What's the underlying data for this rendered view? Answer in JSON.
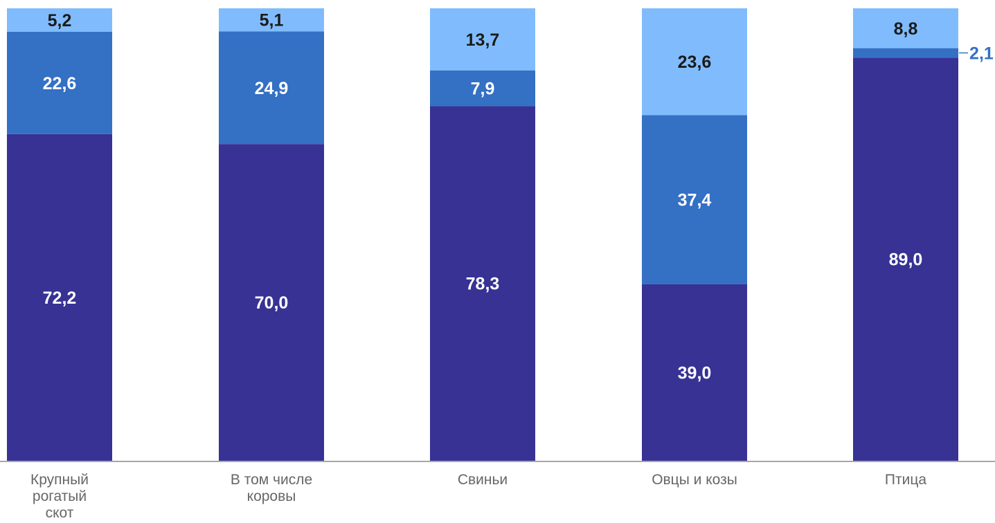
{
  "chart_data": {
    "type": "bar",
    "stacked": true,
    "percent_stacked": true,
    "categories": [
      [
        "Крупный",
        "рогатый",
        "скот"
      ],
      [
        "В том числе",
        "коровы"
      ],
      [
        "Свиньи"
      ],
      [
        "Овцы и козы"
      ],
      [
        "Птица"
      ]
    ],
    "series": [
      {
        "values": [
          72.2,
          70.0,
          78.3,
          39.0,
          89.0
        ],
        "labels": [
          "72,2",
          "70,0",
          "78,3",
          "39,0",
          "89,0"
        ],
        "color": "#373294",
        "label_color": "#ffffff"
      },
      {
        "values": [
          22.6,
          24.9,
          7.9,
          37.4,
          2.1
        ],
        "labels": [
          "22,6",
          "24,9",
          "7,9",
          "37,4",
          "2,1"
        ],
        "color": "#3470C4",
        "label_color": "#ffffff",
        "outside_label_color": "#3470C4"
      },
      {
        "values": [
          5.2,
          5.1,
          13.7,
          23.6,
          8.8
        ],
        "labels": [
          "5,2",
          "5,1",
          "13,7",
          "23,6",
          "8,8"
        ],
        "color": "#80BCFD",
        "label_color": "#1a1a1a"
      }
    ],
    "axis_line_color": "#a6a6a6",
    "category_label_color": "#666666",
    "grid": false,
    "legend": "none",
    "title": "",
    "xlabel": "",
    "ylabel": ""
  }
}
